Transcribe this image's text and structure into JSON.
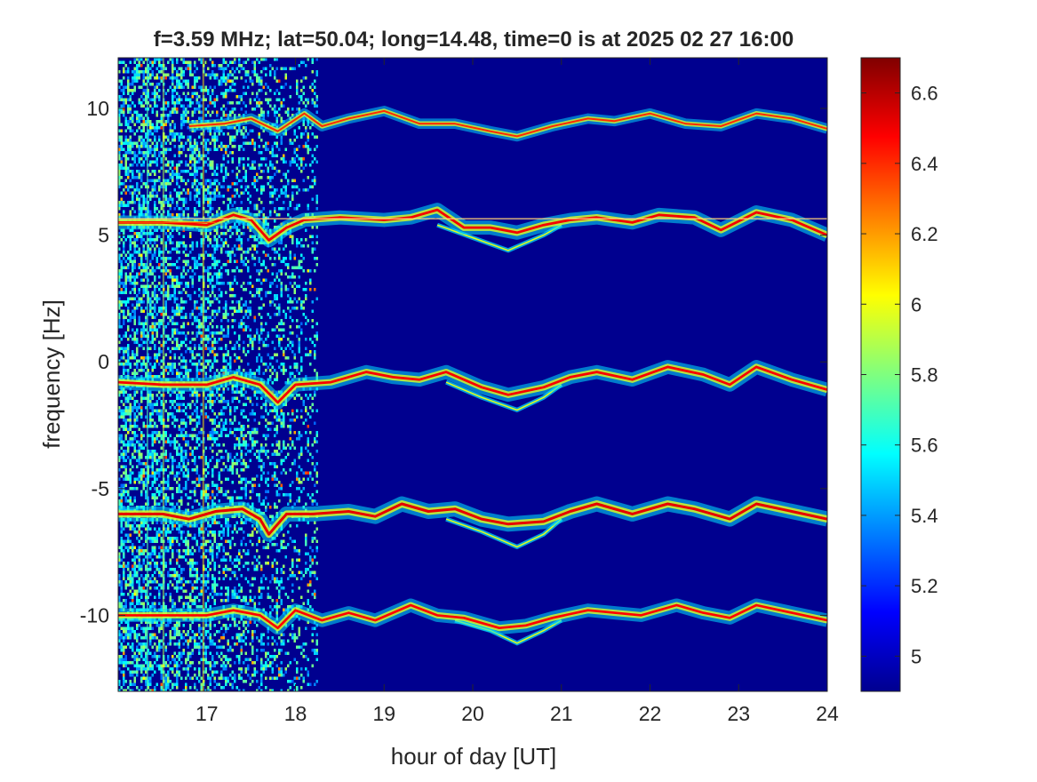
{
  "chart_data": {
    "type": "heatmap",
    "title": "f=3.59 MHz;  lat=50.04; long=14.48, time=0 is at 2025 02 27 16:00",
    "xlabel": "hour of day [UT]",
    "ylabel": "frequency [Hz]",
    "xlim": [
      16,
      24
    ],
    "ylim": [
      -13,
      12
    ],
    "xticks": [
      "17",
      "18",
      "19",
      "20",
      "21",
      "22",
      "23",
      "24"
    ],
    "yticks": [
      "10",
      "5",
      "0",
      "-5",
      "-10"
    ],
    "colormap": "jet",
    "color_range": [
      4.9,
      6.7
    ],
    "colorbar_ticks": [
      "5",
      "5.2",
      "5.4",
      "5.6",
      "5.8",
      "6",
      "6.2",
      "6.4",
      "6.6"
    ],
    "background_color": "#00008f",
    "noise_region_hours": [
      16,
      18.25
    ],
    "traces": [
      {
        "name": "",
        "baseline_hz": 9.5,
        "strength": 0.62,
        "points": [
          [
            16.8,
            9.3
          ],
          [
            17.2,
            9.4
          ],
          [
            17.5,
            9.6
          ],
          [
            17.8,
            9.1
          ],
          [
            18.1,
            9.8
          ],
          [
            18.3,
            9.3
          ],
          [
            18.6,
            9.6
          ],
          [
            19.0,
            9.9
          ],
          [
            19.4,
            9.4
          ],
          [
            19.8,
            9.4
          ],
          [
            20.2,
            9.1
          ],
          [
            20.5,
            8.9
          ],
          [
            20.9,
            9.3
          ],
          [
            21.3,
            9.6
          ],
          [
            21.6,
            9.5
          ],
          [
            22.0,
            9.8
          ],
          [
            22.4,
            9.4
          ],
          [
            22.8,
            9.3
          ],
          [
            23.2,
            9.8
          ],
          [
            23.6,
            9.6
          ],
          [
            24.0,
            9.2
          ]
        ]
      },
      {
        "name": "",
        "baseline_hz": 5.5,
        "strength": 0.92,
        "points": [
          [
            16.0,
            5.5
          ],
          [
            16.5,
            5.5
          ],
          [
            17.0,
            5.4
          ],
          [
            17.3,
            5.8
          ],
          [
            17.5,
            5.6
          ],
          [
            17.7,
            4.8
          ],
          [
            17.9,
            5.3
          ],
          [
            18.1,
            5.6
          ],
          [
            18.5,
            5.7
          ],
          [
            19.0,
            5.6
          ],
          [
            19.3,
            5.7
          ],
          [
            19.6,
            6.0
          ],
          [
            19.9,
            5.3
          ],
          [
            20.2,
            5.3
          ],
          [
            20.5,
            5.1
          ],
          [
            20.8,
            5.4
          ],
          [
            21.1,
            5.6
          ],
          [
            21.4,
            5.7
          ],
          [
            21.8,
            5.5
          ],
          [
            22.1,
            5.8
          ],
          [
            22.5,
            5.7
          ],
          [
            22.8,
            5.2
          ],
          [
            23.2,
            5.9
          ],
          [
            23.6,
            5.6
          ],
          [
            24.0,
            5.0
          ]
        ]
      },
      {
        "name": "",
        "baseline_hz": -0.8,
        "strength": 0.9,
        "points": [
          [
            16.0,
            -0.8
          ],
          [
            16.5,
            -0.9
          ],
          [
            17.0,
            -0.9
          ],
          [
            17.3,
            -0.6
          ],
          [
            17.6,
            -0.9
          ],
          [
            17.8,
            -1.6
          ],
          [
            18.0,
            -0.9
          ],
          [
            18.4,
            -0.8
          ],
          [
            18.8,
            -0.4
          ],
          [
            19.1,
            -0.6
          ],
          [
            19.4,
            -0.7
          ],
          [
            19.7,
            -0.4
          ],
          [
            20.1,
            -1.0
          ],
          [
            20.4,
            -1.3
          ],
          [
            20.8,
            -1.0
          ],
          [
            21.1,
            -0.6
          ],
          [
            21.4,
            -0.4
          ],
          [
            21.8,
            -0.7
          ],
          [
            22.2,
            -0.2
          ],
          [
            22.6,
            -0.5
          ],
          [
            22.9,
            -0.9
          ],
          [
            23.2,
            -0.2
          ],
          [
            23.6,
            -0.7
          ],
          [
            24.0,
            -1.1
          ]
        ]
      },
      {
        "name": "",
        "baseline_hz": -6.0,
        "strength": 1.0,
        "points": [
          [
            16.0,
            -6.0
          ],
          [
            16.5,
            -6.0
          ],
          [
            16.8,
            -6.2
          ],
          [
            17.1,
            -5.9
          ],
          [
            17.4,
            -5.8
          ],
          [
            17.6,
            -6.2
          ],
          [
            17.7,
            -6.8
          ],
          [
            17.9,
            -6.0
          ],
          [
            18.2,
            -6.0
          ],
          [
            18.6,
            -5.9
          ],
          [
            18.9,
            -6.1
          ],
          [
            19.2,
            -5.6
          ],
          [
            19.5,
            -5.9
          ],
          [
            19.8,
            -5.8
          ],
          [
            20.1,
            -6.2
          ],
          [
            20.4,
            -6.4
          ],
          [
            20.8,
            -6.3
          ],
          [
            21.1,
            -5.9
          ],
          [
            21.4,
            -5.6
          ],
          [
            21.8,
            -6.0
          ],
          [
            22.2,
            -5.6
          ],
          [
            22.5,
            -5.8
          ],
          [
            22.9,
            -6.2
          ],
          [
            23.2,
            -5.6
          ],
          [
            23.6,
            -5.9
          ],
          [
            24.0,
            -6.2
          ]
        ]
      },
      {
        "name": "",
        "baseline_hz": -10.0,
        "strength": 0.86,
        "points": [
          [
            16.0,
            -10.0
          ],
          [
            16.5,
            -10.0
          ],
          [
            17.0,
            -10.0
          ],
          [
            17.3,
            -9.8
          ],
          [
            17.6,
            -10.0
          ],
          [
            17.8,
            -10.5
          ],
          [
            18.0,
            -9.8
          ],
          [
            18.3,
            -10.2
          ],
          [
            18.6,
            -9.9
          ],
          [
            18.9,
            -10.2
          ],
          [
            19.3,
            -9.6
          ],
          [
            19.6,
            -10.0
          ],
          [
            19.9,
            -10.1
          ],
          [
            20.3,
            -10.5
          ],
          [
            20.6,
            -10.4
          ],
          [
            20.9,
            -10.1
          ],
          [
            21.3,
            -9.8
          ],
          [
            21.6,
            -9.9
          ],
          [
            21.9,
            -10.0
          ],
          [
            22.3,
            -9.6
          ],
          [
            22.6,
            -9.9
          ],
          [
            22.9,
            -10.1
          ],
          [
            23.2,
            -9.6
          ],
          [
            23.6,
            -9.9
          ],
          [
            24.0,
            -10.2
          ]
        ]
      }
    ],
    "dip_branches": [
      [
        [
          19.6,
          5.4
        ],
        [
          20.0,
          4.9
        ],
        [
          20.4,
          4.4
        ],
        [
          20.8,
          5.0
        ],
        [
          21.0,
          5.4
        ]
      ],
      [
        [
          19.7,
          -0.8
        ],
        [
          20.1,
          -1.4
        ],
        [
          20.5,
          -1.9
        ],
        [
          20.8,
          -1.4
        ],
        [
          21.0,
          -0.9
        ]
      ],
      [
        [
          19.7,
          -6.2
        ],
        [
          20.1,
          -6.7
        ],
        [
          20.5,
          -7.3
        ],
        [
          20.8,
          -6.8
        ],
        [
          21.0,
          -6.2
        ]
      ],
      [
        [
          19.8,
          -10.2
        ],
        [
          20.2,
          -10.6
        ],
        [
          20.5,
          -11.1
        ],
        [
          20.8,
          -10.6
        ],
        [
          21.0,
          -10.2
        ]
      ]
    ],
    "interference_lines_hz": [
      5.65,
      5.5
    ]
  }
}
